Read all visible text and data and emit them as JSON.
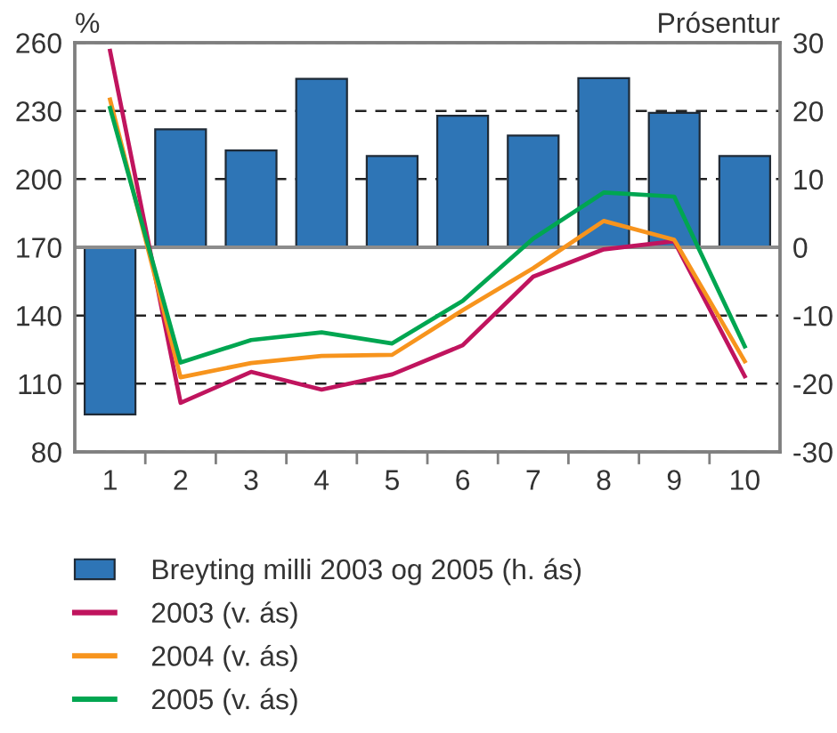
{
  "chart_data": {
    "type": "line",
    "categories": [
      "1",
      "2",
      "3",
      "4",
      "5",
      "6",
      "7",
      "8",
      "9",
      "10"
    ],
    "ylabel": "%",
    "y2label": "Prósentur",
    "ylim": [
      80,
      260
    ],
    "yticks": [
      80,
      110,
      140,
      170,
      200,
      230,
      260
    ],
    "y2lim": [
      -30,
      30
    ],
    "y2ticks": [
      -30,
      -20,
      -10,
      0,
      10,
      20,
      30
    ],
    "grid": "y",
    "legend": "bottom",
    "line_style": "solid",
    "ref_lines": [
      {
        "axis": "y2",
        "value": 0,
        "color": "#8c8c8c",
        "line_style": "solid"
      }
    ],
    "series": [
      {
        "name": "Breyting milli 2003 og 2005 (h. ás)",
        "type": "bar",
        "axis": "y2",
        "color": "#2e75b6",
        "values": [
          -24.5,
          17.3,
          14.2,
          24.7,
          13.4,
          19.3,
          16.4,
          24.8,
          19.7,
          13.4
        ]
      },
      {
        "name": "2003 (v. ás)",
        "color": "#c0145e",
        "values": [
          256.4,
          101.6,
          115.2,
          107.4,
          114.1,
          126.9,
          157.1,
          169.1,
          172.7,
          113.3
        ]
      },
      {
        "name": "2004 (v. ás)",
        "color": "#f7941d",
        "values": [
          235,
          112.8,
          119.1,
          122.2,
          122.7,
          142.3,
          160.8,
          181.6,
          173.3,
          119.9
        ]
      },
      {
        "name": "2005 (v. ás)",
        "color": "#00a651",
        "values": [
          231.3,
          119.3,
          129.2,
          132.6,
          127.7,
          146.4,
          173.8,
          194.1,
          192.3,
          126.4
        ]
      }
    ]
  }
}
